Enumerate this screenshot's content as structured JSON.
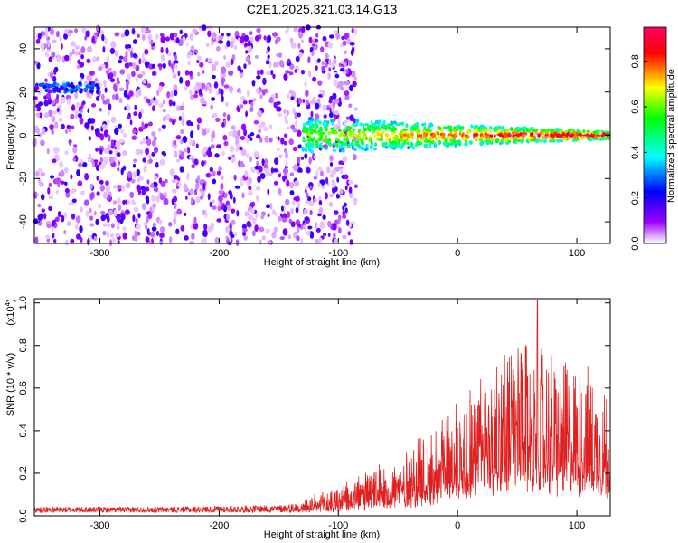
{
  "title": "C2E1.2025.321.03.14.G13",
  "chart_data": [
    {
      "type": "heatmap",
      "xlabel": "Height of straight line (km)",
      "ylabel": "Frequency (Hz)",
      "xlim": [
        -355,
        128
      ],
      "ylim": [
        -50,
        50
      ],
      "x_ticks": [
        -300,
        -200,
        -100,
        0,
        100
      ],
      "y_ticks": [
        -40,
        -20,
        0,
        20,
        40
      ],
      "colorbar": {
        "label": "Normalized spectral amplitude",
        "range": [
          0,
          0.95
        ],
        "ticks": [
          0.0,
          0.2,
          0.4,
          0.6,
          0.8
        ],
        "tick_labels": [
          "0.0",
          "0.2",
          "0.4",
          "0.6",
          "0.8"
        ],
        "colors": [
          "#ffffff",
          "#9b00ff",
          "#0000ff",
          "#00ffff",
          "#00ff00",
          "#ffff00",
          "#ff0000",
          "#ff0066"
        ]
      },
      "structure": {
        "noise_region": {
          "x": [
            -355,
            -100
          ],
          "amplitude": [
            0.02,
            0.2
          ]
        },
        "signal_track": {
          "x": [
            -130,
            128
          ],
          "frequency": 0,
          "amplitude_range": [
            0.2,
            0.9
          ]
        },
        "line_22hz": {
          "x": [
            -350,
            -300
          ],
          "frequency": 22,
          "amplitude": 0.3
        }
      }
    },
    {
      "type": "line",
      "xlabel": "Height of straight line (km)",
      "ylabel": "SNR (10 * v/v)",
      "y_multiplier_label": "(x10",
      "y_multiplier_exp": "4",
      "xlim": [
        -355,
        128
      ],
      "ylim": [
        0,
        1.02
      ],
      "x_ticks": [
        -300,
        -200,
        -100,
        0,
        100
      ],
      "y_ticks": [
        0.0,
        0.2,
        0.4,
        0.6,
        0.8,
        1.0
      ],
      "y_tick_labels": [
        "0.0",
        "0.2",
        "0.4",
        "0.6",
        "0.8",
        "1.0"
      ],
      "color": "#e02020",
      "envelope": {
        "x": [
          -355,
          -250,
          -150,
          -120,
          -100,
          -80,
          -60,
          -40,
          -20,
          0,
          20,
          40,
          60,
          80,
          100,
          128
        ],
        "y": [
          0.03,
          0.03,
          0.04,
          0.06,
          0.09,
          0.12,
          0.15,
          0.2,
          0.27,
          0.35,
          0.42,
          0.5,
          0.52,
          0.48,
          0.45,
          0.38
        ]
      },
      "peak": {
        "x": 67,
        "y": 1.01
      }
    }
  ]
}
